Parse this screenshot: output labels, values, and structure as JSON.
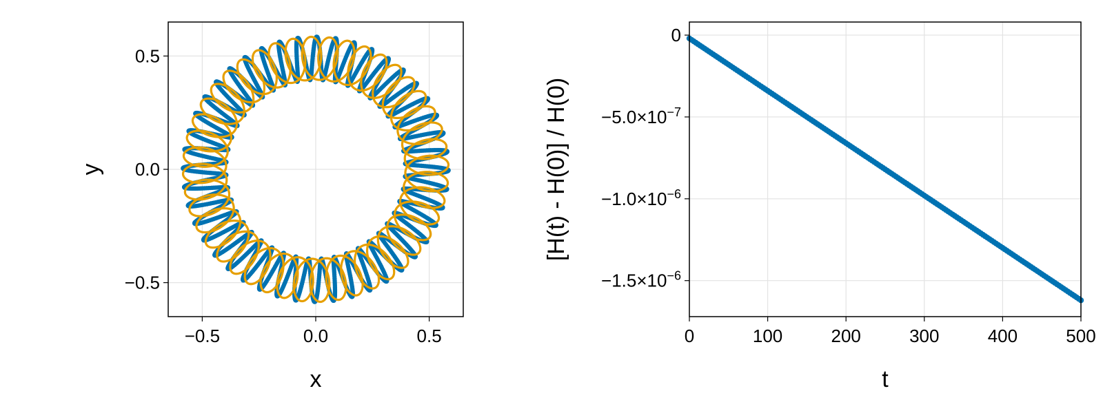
{
  "chart_data": [
    {
      "type": "line",
      "title": "",
      "xlabel": "x",
      "ylabel": "y",
      "xlim": [
        -0.65,
        0.65
      ],
      "ylim": [
        -0.65,
        0.65
      ],
      "aspect": "equal",
      "grid": true,
      "legend": "none",
      "xticks": [
        -0.5,
        0.0,
        0.5
      ],
      "xtick_labels": [
        "−0.5",
        "0.0",
        "0.5"
      ],
      "yticks": [
        -0.5,
        0.0,
        0.5
      ],
      "ytick_labels": [
        "−0.5",
        "0.0",
        "0.5"
      ],
      "series": [
        {
          "color": "#0072b2",
          "style": "markers",
          "description_points": "precessing orbit sampled points",
          "orbit": {
            "mean_radius": 0.49,
            "epicycle_amplitude": 0.095,
            "lobes": 44
          }
        },
        {
          "color": "#e69f00",
          "style": "line",
          "orbit": {
            "mean_radius": 0.49,
            "epicycle_amplitude": 0.095,
            "lobes": 44
          }
        }
      ]
    },
    {
      "type": "line",
      "title": "",
      "xlabel": "t",
      "ylabel": "[H(t) - H(0)] / H(0)",
      "xlim": [
        0,
        500
      ],
      "ylim": [
        -1.72e-06,
        8e-08
      ],
      "grid": true,
      "legend": "none",
      "xticks": [
        0,
        100,
        200,
        300,
        400,
        500
      ],
      "xtick_labels": [
        "0",
        "100",
        "200",
        "300",
        "400",
        "500"
      ],
      "yticks": [
        0,
        -5e-07,
        -1e-06,
        -1.5e-06
      ],
      "ytick_labels": [
        {
          "base": "0",
          "exp": ""
        },
        {
          "base": "−5.0×10",
          "exp": "−7"
        },
        {
          "base": "−1.0×10",
          "exp": "−6"
        },
        {
          "base": "−1.5×10",
          "exp": "−6"
        }
      ],
      "series": [
        {
          "color": "#0072b2",
          "style": "line+markers",
          "x": [
            0,
            500
          ],
          "y": [
            -2e-08,
            -1.62e-06
          ]
        }
      ]
    }
  ]
}
